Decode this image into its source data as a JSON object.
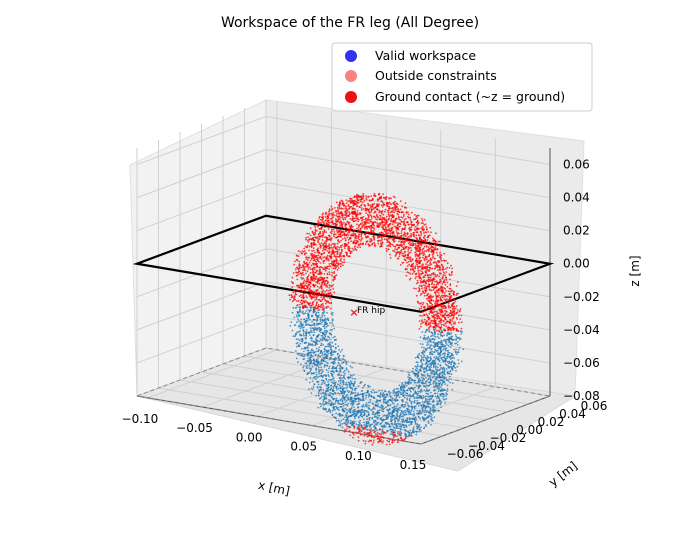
{
  "chart_data": {
    "type": "scatter",
    "projection": "3d",
    "title": "Workspace of the FR leg (All Degree)",
    "xlabel": "x [m]",
    "ylabel": "y [m]",
    "zlabel": "z [m]",
    "xlim": [
      -0.11,
      0.15
    ],
    "ylim": [
      -0.06,
      0.06
    ],
    "zlim": [
      -0.08,
      0.07
    ],
    "x_ticks": [
      -0.1,
      -0.05,
      0.0,
      0.05,
      0.1,
      0.15
    ],
    "x_tick_labels": [
      "−0.10",
      "−0.05",
      "0.00",
      "0.05",
      "0.10",
      "0.15"
    ],
    "y_ticks": [
      -0.06,
      -0.04,
      -0.02,
      0.0,
      0.02,
      0.04,
      0.06
    ],
    "y_tick_labels": [
      "−0.06",
      "−0.04",
      "−0.02",
      "0.00",
      "0.02",
      "0.04",
      "0.06"
    ],
    "z_ticks": [
      -0.08,
      -0.06,
      -0.04,
      -0.02,
      0.0,
      0.02,
      0.04,
      0.06
    ],
    "z_tick_labels": [
      "−0.08",
      "−0.06",
      "−0.04",
      "−0.02",
      "0.00",
      "0.02",
      "0.04",
      "0.06"
    ],
    "grid": true,
    "legend_position": "top-right",
    "legend": [
      {
        "label": "Valid workspace",
        "color": "#3333ee"
      },
      {
        "label": "Outside constraints",
        "color": "#ff8080"
      },
      {
        "label": "Ground contact (~z = ground)",
        "color": "#ee1111"
      }
    ],
    "series": [
      {
        "name": "Valid workspace",
        "color": "#1f77b4",
        "shape": "ring",
        "center": [
          0.05,
          0.0,
          -0.03
        ],
        "outer_radius": 0.075,
        "inner_radius": 0.044,
        "z_range": [
          -0.105,
          -0.03
        ]
      },
      {
        "name": "Outside constraints",
        "color": "#ff0000",
        "shape": "ring",
        "center": [
          0.05,
          0.0,
          -0.03
        ],
        "outer_radius": 0.075,
        "inner_radius": 0.044,
        "z_range": [
          -0.03,
          0.045
        ]
      },
      {
        "name": "Ground contact (~z = ground)",
        "color": "#ee1111",
        "shape": "ring-bottom",
        "z": -0.105
      }
    ],
    "annotations": [
      {
        "label": "FR hip",
        "marker": "x",
        "color": "#d62728",
        "x": 0.0,
        "y": 0.0,
        "z": 0.0
      }
    ],
    "planes": [
      {
        "name": "hip plane",
        "z": 0.0,
        "x_range": [
          -0.11,
          0.15
        ],
        "y_range": [
          -0.06,
          0.06
        ],
        "style": "solid",
        "color": "#000000"
      },
      {
        "name": "ground plane",
        "z": -0.08,
        "x_range": [
          -0.11,
          0.15
        ],
        "y_range": [
          -0.06,
          0.06
        ],
        "style": "dashed",
        "color": "#888888"
      }
    ]
  }
}
